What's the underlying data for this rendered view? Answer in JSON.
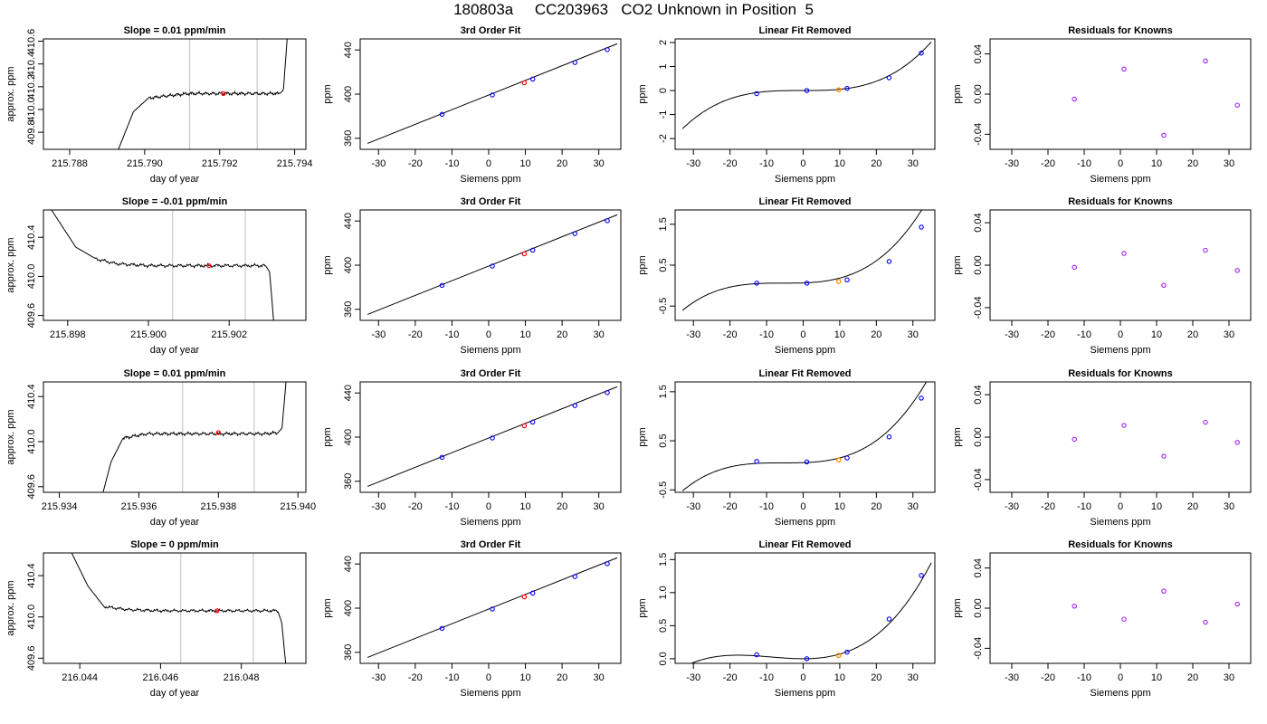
{
  "title": "180803a     CC203963   CO2 Unknown in Position  5",
  "colors": {
    "axis": "#000000",
    "line": "#000000",
    "vline": "#bfbfbf",
    "red": "#ff0000",
    "blue": "#0000ff",
    "orange": "#ff8c00",
    "purple": "#a020f0"
  },
  "chart_data": [
    {
      "type": "line",
      "title": "Slope =  0.01  ppm/min",
      "xlabel": "day of year",
      "ylabel": "approx. ppm",
      "xlim": [
        215.7873,
        215.7943
      ],
      "ylim": [
        409.65,
        410.62
      ],
      "xticks": [
        215.788,
        215.79,
        215.792,
        215.794
      ],
      "xtick_labels": [
        "215.788",
        "215.790",
        "215.792",
        "215.794"
      ],
      "yticks": [
        409.8,
        410.0,
        410.2,
        410.4,
        410.6
      ],
      "ytick_labels": [
        "409.8",
        "410.0",
        "410.2",
        "410.4",
        "410.6"
      ],
      "series": [
        {
          "x": [
            215.7893,
            215.7897,
            215.7901,
            215.7906,
            215.7912,
            215.7922,
            215.7932,
            215.7936,
            215.7937,
            215.7938
          ],
          "y": [
            409.65,
            409.98,
            410.1,
            410.12,
            410.14,
            410.14,
            410.14,
            410.14,
            410.17,
            410.62
          ]
        }
      ],
      "vlines": [
        215.7912,
        215.793
      ],
      "point": {
        "x": 215.7921,
        "y": 410.14
      },
      "noise": 0.01
    },
    {
      "type": "line",
      "title": "3rd Order Fit",
      "xlabel": "Siemens ppm",
      "ylabel": "ppm",
      "xlim": [
        -35,
        36
      ],
      "ylim": [
        350,
        450
      ],
      "xticks": [
        -30,
        -20,
        -10,
        0,
        10,
        20,
        30
      ],
      "xtick_labels": [
        "-30",
        "-20",
        "-10",
        "0",
        "10",
        "20",
        "30"
      ],
      "yticks": [
        360,
        400,
        440
      ],
      "ytick_labels": [
        "360",
        "400",
        "440"
      ],
      "series": [
        {
          "x": [
            -33,
            35
          ],
          "y": [
            355.4,
            445.6
          ]
        }
      ],
      "points": {
        "x": [
          -12.7,
          1.0,
          12.0,
          23.5,
          32.3
        ],
        "y": [
          381.7,
          399.2,
          413.6,
          428.6,
          440.3
        ]
      },
      "red_point": {
        "x": 9.7,
        "y": 410.3
      }
    },
    {
      "type": "line",
      "title": "Linear Fit Removed",
      "xlabel": "Siemens ppm",
      "ylabel": "ppm",
      "xlim": [
        -35,
        36
      ],
      "ylim": [
        -2.45,
        2.15
      ],
      "xticks": [
        -30,
        -20,
        -10,
        0,
        10,
        20,
        30
      ],
      "xtick_labels": [
        "-30",
        "-20",
        "-10",
        "0",
        "10",
        "20",
        "30"
      ],
      "yticks": [
        -2,
        -1,
        0,
        1,
        2
      ],
      "ytick_labels": [
        "-2",
        "-1",
        "0",
        "1",
        "2"
      ],
      "curve": {
        "x0": 0,
        "a": 0,
        "b": 5e-05,
        "c": 4.58e-05,
        "start": -33,
        "end": 35
      },
      "points": {
        "x": [
          -12.7,
          1.0,
          12.0,
          23.5,
          32.3
        ],
        "y": [
          -0.13,
          0.0,
          0.09,
          0.53,
          1.56
        ]
      },
      "orange_point": {
        "x": 9.7,
        "y": 0.03
      }
    },
    {
      "type": "scatter",
      "title": "Residuals for Knowns",
      "xlabel": "Siemens ppm",
      "ylabel": "ppm",
      "xlim": [
        -36,
        36
      ],
      "ylim": [
        -0.055,
        0.055
      ],
      "xticks": [
        -30,
        -20,
        -10,
        0,
        10,
        20,
        30
      ],
      "xtick_labels": [
        "-30",
        "-20",
        "-10",
        "0",
        "10",
        "20",
        "30"
      ],
      "yticks": [
        -0.04,
        0.0,
        0.04
      ],
      "ytick_labels": [
        "-0.04",
        "0.00",
        "0.04"
      ],
      "points": {
        "x": [
          -12.7,
          1.0,
          12.0,
          23.5,
          32.3
        ],
        "y": [
          -0.005,
          0.025,
          -0.041,
          0.033,
          -0.011
        ]
      }
    },
    {
      "type": "line",
      "title": "Slope =  -0.01  ppm/min",
      "xlabel": "day of year",
      "ylabel": "approx. ppm",
      "xlim": [
        215.8974,
        215.9039
      ],
      "ylim": [
        409.55,
        410.68
      ],
      "xticks": [
        215.898,
        215.9,
        215.902
      ],
      "xtick_labels": [
        "215.898",
        "215.900",
        "215.902"
      ],
      "yticks": [
        409.6,
        410.0,
        410.4
      ],
      "ytick_labels": [
        "409.6",
        "410.0",
        "410.4"
      ],
      "series": [
        {
          "x": [
            215.8976,
            215.8982,
            215.8987,
            215.8992,
            215.9,
            215.901,
            215.9024,
            215.9029,
            215.903,
            215.9031
          ],
          "y": [
            410.68,
            410.3,
            410.18,
            410.13,
            410.11,
            410.11,
            410.11,
            410.11,
            410.05,
            409.55
          ]
        }
      ],
      "vlines": [
        215.9006,
        215.9024
      ],
      "point": {
        "x": 215.9015,
        "y": 410.11
      },
      "noise": 0.012
    },
    {
      "type": "line",
      "title": "3rd Order Fit",
      "xlabel": "Siemens ppm",
      "ylabel": "ppm",
      "xlim": [
        -35,
        36
      ],
      "ylim": [
        350,
        450
      ],
      "xticks": [
        -30,
        -20,
        -10,
        0,
        10,
        20,
        30
      ],
      "xtick_labels": [
        "-30",
        "-20",
        "-10",
        "0",
        "10",
        "20",
        "30"
      ],
      "yticks": [
        360,
        400,
        440
      ],
      "ytick_labels": [
        "360",
        "400",
        "440"
      ],
      "series": [
        {
          "x": [
            -33,
            35
          ],
          "y": [
            355.4,
            445.6
          ]
        }
      ],
      "points": {
        "x": [
          -12.7,
          1.0,
          12.0,
          23.5,
          32.3
        ],
        "y": [
          381.7,
          399.2,
          413.6,
          428.6,
          440.3
        ]
      },
      "red_point": {
        "x": 9.7,
        "y": 410.3
      }
    },
    {
      "type": "line",
      "title": "Linear Fit Removed",
      "xlabel": "Siemens ppm",
      "ylabel": "ppm",
      "xlim": [
        -35,
        36
      ],
      "ylim": [
        -0.85,
        1.85
      ],
      "xticks": [
        -30,
        -20,
        -10,
        0,
        10,
        20,
        30
      ],
      "xtick_labels": [
        "-30",
        "-20",
        "-10",
        "0",
        "10",
        "20",
        "30"
      ],
      "yticks": [
        -0.5,
        0.5,
        1.5
      ],
      "ytick_labels": [
        "-0.5",
        "0.5",
        "1.5"
      ],
      "curve": {
        "x0": -5.5,
        "a": 0.06,
        "b": 1.38e-05,
        "c": 3.25e-05,
        "start": -33,
        "end": 35
      },
      "points": {
        "x": [
          -12.7,
          1.0,
          12.0,
          23.5,
          32.3
        ],
        "y": [
          0.06,
          0.06,
          0.14,
          0.59,
          1.43
        ]
      },
      "orange_point": {
        "x": 9.7,
        "y": 0.1
      }
    },
    {
      "type": "scatter",
      "title": "Residuals for Knowns",
      "xlabel": "Siemens ppm",
      "ylabel": "ppm",
      "xlim": [
        -36,
        36
      ],
      "ylim": [
        -0.052,
        0.052
      ],
      "xticks": [
        -30,
        -20,
        -10,
        0,
        10,
        20,
        30
      ],
      "xtick_labels": [
        "-30",
        "-20",
        "-10",
        "0",
        "10",
        "20",
        "30"
      ],
      "yticks": [
        -0.04,
        0.0,
        0.04
      ],
      "ytick_labels": [
        "-0.04",
        "0.00",
        "0.04"
      ],
      "points": {
        "x": [
          -12.7,
          1.0,
          12.0,
          23.5,
          32.3
        ],
        "y": [
          -0.002,
          0.011,
          -0.019,
          0.014,
          -0.005
        ]
      }
    },
    {
      "type": "line",
      "title": "Slope =  0.01  ppm/min",
      "xlabel": "day of year",
      "ylabel": "approx. ppm",
      "xlim": [
        215.9336,
        215.9402
      ],
      "ylim": [
        409.55,
        410.53
      ],
      "xticks": [
        215.934,
        215.936,
        215.938,
        215.94
      ],
      "xtick_labels": [
        "215.934",
        "215.936",
        "215.938",
        "215.940"
      ],
      "yticks": [
        409.6,
        410.0,
        410.4
      ],
      "ytick_labels": [
        "409.6",
        "410.0",
        "410.4"
      ],
      "series": [
        {
          "x": [
            215.9351,
            215.9353,
            215.9356,
            215.9362,
            215.937,
            215.938,
            215.9392,
            215.9395,
            215.9396,
            215.9397
          ],
          "y": [
            409.55,
            409.82,
            410.03,
            410.07,
            410.07,
            410.07,
            410.07,
            410.08,
            410.12,
            410.53
          ]
        }
      ],
      "vlines": [
        215.9371,
        215.9389
      ],
      "point": {
        "x": 215.938,
        "y": 410.08
      },
      "noise": 0.01
    },
    {
      "type": "line",
      "title": "3rd Order Fit",
      "xlabel": "Siemens ppm",
      "ylabel": "ppm",
      "xlim": [
        -35,
        36
      ],
      "ylim": [
        350,
        450
      ],
      "xticks": [
        -30,
        -20,
        -10,
        0,
        10,
        20,
        30
      ],
      "xtick_labels": [
        "-30",
        "-20",
        "-10",
        "0",
        "10",
        "20",
        "30"
      ],
      "yticks": [
        360,
        400,
        440
      ],
      "ytick_labels": [
        "360",
        "400",
        "440"
      ],
      "series": [
        {
          "x": [
            -33,
            35
          ],
          "y": [
            355.4,
            445.6
          ]
        }
      ],
      "points": {
        "x": [
          -12.7,
          1.0,
          12.0,
          23.5,
          32.3
        ],
        "y": [
          381.7,
          399.2,
          413.6,
          428.6,
          440.3
        ]
      },
      "red_point": {
        "x": 9.7,
        "y": 410.3
      }
    },
    {
      "type": "line",
      "title": "Linear Fit Removed",
      "xlabel": "Siemens ppm",
      "ylabel": "ppm",
      "xlim": [
        -35,
        36
      ],
      "ylim": [
        -0.55,
        1.7
      ],
      "xticks": [
        -30,
        -20,
        -10,
        0,
        10,
        20,
        30
      ],
      "xtick_labels": [
        "-30",
        "-20",
        "-10",
        "0",
        "10",
        "20",
        "30"
      ],
      "yticks": [
        -0.5,
        0.5,
        1.5
      ],
      "ytick_labels": [
        "-0.5",
        "0.5",
        "1.5"
      ],
      "curve": {
        "x0": -5.0,
        "a": 0.05,
        "b": 4.05e-05,
        "c": 2.75e-05,
        "start": -33,
        "end": 35
      },
      "points": {
        "x": [
          -12.7,
          1.0,
          12.0,
          23.5,
          32.3
        ],
        "y": [
          0.08,
          0.07,
          0.15,
          0.58,
          1.37
        ]
      },
      "orange_point": {
        "x": 9.7,
        "y": 0.11
      }
    },
    {
      "type": "scatter",
      "title": "Residuals for Knowns",
      "xlabel": "Siemens ppm",
      "ylabel": "ppm",
      "xlim": [
        -36,
        36
      ],
      "ylim": [
        -0.052,
        0.052
      ],
      "xticks": [
        -30,
        -20,
        -10,
        0,
        10,
        20,
        30
      ],
      "xtick_labels": [
        "-30",
        "-20",
        "-10",
        "0",
        "10",
        "20",
        "30"
      ],
      "yticks": [
        -0.04,
        0.0,
        0.04
      ],
      "ytick_labels": [
        "-0.04",
        "0.00",
        "0.04"
      ],
      "points": {
        "x": [
          -12.7,
          1.0,
          12.0,
          23.5,
          32.3
        ],
        "y": [
          -0.002,
          0.011,
          -0.018,
          0.014,
          -0.005
        ]
      }
    },
    {
      "type": "line",
      "title": "Slope =  0  ppm/min",
      "xlabel": "day of year",
      "ylabel": "approx. ppm",
      "xlim": [
        216.0431,
        216.0496
      ],
      "ylim": [
        409.55,
        410.62
      ],
      "xticks": [
        216.044,
        216.046,
        216.048
      ],
      "xtick_labels": [
        "216.044",
        "216.046",
        "216.048"
      ],
      "yticks": [
        409.6,
        410.0,
        410.4
      ],
      "ytick_labels": [
        "409.6",
        "410.0",
        "410.4"
      ],
      "series": [
        {
          "x": [
            216.0438,
            216.0442,
            216.0446,
            216.0452,
            216.046,
            216.0472,
            216.0485,
            216.0489,
            216.049,
            216.0491
          ],
          "y": [
            410.62,
            410.3,
            410.1,
            410.07,
            410.06,
            410.06,
            410.06,
            410.06,
            409.95,
            409.55
          ]
        }
      ],
      "vlines": [
        216.0465,
        216.0483
      ],
      "point": {
        "x": 216.0474,
        "y": 410.06
      },
      "noise": 0.01
    },
    {
      "type": "line",
      "title": "3rd Order Fit",
      "xlabel": "Siemens ppm",
      "ylabel": "ppm",
      "xlim": [
        -35,
        36
      ],
      "ylim": [
        350,
        450
      ],
      "xticks": [
        -30,
        -20,
        -10,
        0,
        10,
        20,
        30
      ],
      "xtick_labels": [
        "-30",
        "-20",
        "-10",
        "0",
        "10",
        "20",
        "30"
      ],
      "yticks": [
        360,
        400,
        440
      ],
      "ytick_labels": [
        "360",
        "400",
        "440"
      ],
      "series": [
        {
          "x": [
            -33,
            35
          ],
          "y": [
            355.4,
            445.6
          ]
        }
      ],
      "points": {
        "x": [
          -12.7,
          1.0,
          12.0,
          23.5,
          32.3
        ],
        "y": [
          381.7,
          399.2,
          413.6,
          428.6,
          440.3
        ]
      },
      "red_point": {
        "x": 9.7,
        "y": 410.3
      }
    },
    {
      "type": "line",
      "title": "Linear Fit Removed",
      "xlabel": "Siemens ppm",
      "ylabel": "ppm",
      "xlim": [
        -35,
        36
      ],
      "ylim": [
        -0.07,
        1.6
      ],
      "xticks": [
        -30,
        -20,
        -10,
        0,
        10,
        20,
        30
      ],
      "xtick_labels": [
        "-30",
        "-20",
        "-10",
        "0",
        "10",
        "20",
        "30"
      ],
      "yticks": [
        0.0,
        0.5,
        1.0,
        1.5
      ],
      "ytick_labels": [
        "0.0",
        "0.5",
        "1.0",
        "1.5"
      ],
      "curve": {
        "x0": 0,
        "a": 0,
        "b": 0.000512,
        "c": 1.92e-05,
        "start": -33,
        "end": 35
      },
      "points": {
        "x": [
          -12.7,
          1.0,
          12.0,
          23.5,
          32.3
        ],
        "y": [
          0.06,
          0.0,
          0.1,
          0.6,
          1.26
        ]
      },
      "orange_point": {
        "x": 9.7,
        "y": 0.05
      }
    },
    {
      "type": "scatter",
      "title": "Residuals for Knowns",
      "xlabel": "Siemens ppm",
      "ylabel": "ppm",
      "xlim": [
        -36,
        36
      ],
      "ylim": [
        -0.055,
        0.055
      ],
      "xticks": [
        -30,
        -20,
        -10,
        0,
        10,
        20,
        30
      ],
      "xtick_labels": [
        "-30",
        "-20",
        "-10",
        "0",
        "10",
        "20",
        "30"
      ],
      "yticks": [
        -0.04,
        0.0,
        0.04
      ],
      "ytick_labels": [
        "-0.04",
        "0.00",
        "0.04"
      ],
      "points": {
        "x": [
          -12.7,
          1.0,
          12.0,
          23.5,
          32.3
        ],
        "y": [
          0.002,
          -0.011,
          0.017,
          -0.014,
          0.004
        ]
      }
    }
  ]
}
